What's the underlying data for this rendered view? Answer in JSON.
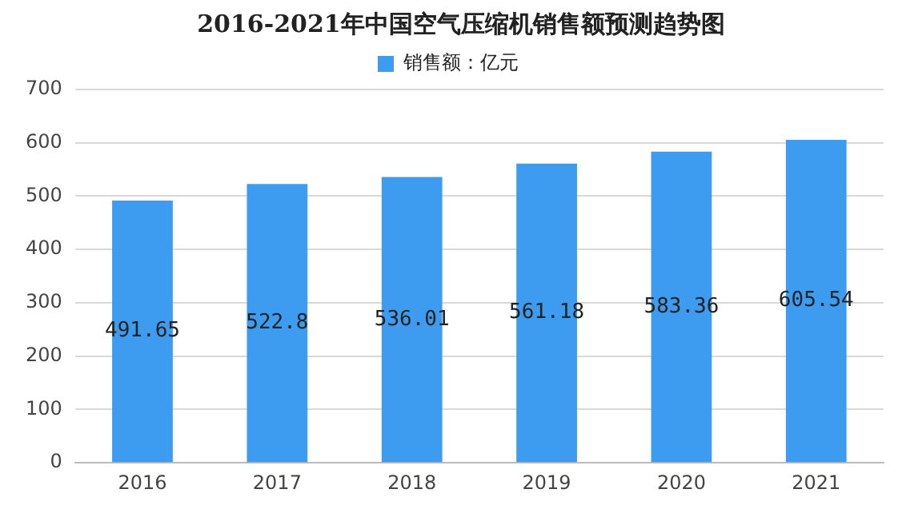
{
  "chart_data": {
    "type": "bar",
    "title": "2016-2021年中国空气压缩机销售额预测趋势图",
    "categories": [
      "2016",
      "2017",
      "2018",
      "2019",
      "2020",
      "2021"
    ],
    "series": [
      {
        "name": "销售额：亿元",
        "color": "#3d9cf0",
        "values": [
          491.65,
          522.8,
          536.01,
          561.18,
          583.36,
          605.54
        ]
      }
    ],
    "ylim": [
      0,
      700
    ],
    "yticks": [
      0,
      100,
      200,
      300,
      400,
      500,
      600,
      700
    ],
    "grid": "y",
    "legend": "top",
    "data_labels": true
  }
}
